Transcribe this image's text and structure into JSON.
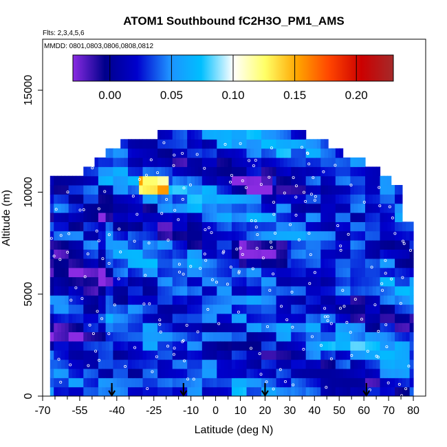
{
  "chart_data": {
    "type": "heatmap",
    "title": "ATOM1 Southbound fC2H3O_PM1_AMS",
    "subtitle_flights": "Flts: 2,3,4,5,6",
    "subtitle_dates": "MMDD: 0801,0803,0806,0808,0812",
    "xlabel": "Latitude (deg N)",
    "ylabel": "Altitude (m)",
    "xlim": [
      -70,
      85
    ],
    "ylim": [
      0,
      17500
    ],
    "x_tick_values": [
      -70,
      -55,
      -40,
      -25,
      -10,
      0,
      10,
      20,
      30,
      40,
      50,
      60,
      70,
      80
    ],
    "x_tick_labels": [
      "-70",
      "-55",
      "-40",
      "-25",
      "-10",
      "0",
      "10",
      "20",
      "30",
      "40",
      "50",
      "60",
      "70",
      "80"
    ],
    "x_minor_ticks": [
      -65,
      -60,
      -50,
      -45,
      -35,
      -30,
      -20,
      -15,
      -5,
      5,
      15,
      25,
      35,
      45,
      55,
      65,
      75
    ],
    "y_tick_values": [
      0,
      5000,
      10000,
      15000
    ],
    "y_tick_labels": [
      "0",
      "5000",
      "10000",
      "15000"
    ],
    "colorbar": {
      "range": [
        -0.03,
        0.23
      ],
      "tick_values": [
        0.0,
        0.05,
        0.1,
        0.15,
        0.2
      ],
      "tick_labels": [
        "0.00",
        "0.05",
        "0.10",
        "0.15",
        "0.20"
      ],
      "colors": [
        "#8a2be2",
        "#00008b",
        "#0000cd",
        "#1e90ff",
        "#00bfff",
        "#ffffff",
        "#ffff66",
        "#ffa500",
        "#ff4500",
        "#cc0000",
        "#a52a2a"
      ]
    },
    "arrow_latitudes": [
      -42,
      -13,
      20,
      61
    ],
    "altitude_profile": [
      [
        -67,
        0,
        10500
      ],
      [
        -65,
        0,
        10500
      ],
      [
        -60,
        0,
        10500
      ],
      [
        -55,
        0,
        10900
      ],
      [
        -50,
        0,
        11600
      ],
      [
        -45,
        0,
        12000
      ],
      [
        -40,
        0,
        12200
      ],
      [
        -35,
        0,
        12400
      ],
      [
        -30,
        0,
        12600
      ],
      [
        -25,
        0,
        12700
      ],
      [
        -20,
        0,
        12700
      ],
      [
        -15,
        0,
        12700
      ],
      [
        -10,
        0,
        12700
      ],
      [
        -5,
        0,
        12700
      ],
      [
        0,
        0,
        12700
      ],
      [
        5,
        0,
        13000
      ],
      [
        10,
        0,
        13000
      ],
      [
        15,
        0,
        13000
      ],
      [
        20,
        0,
        13000
      ],
      [
        25,
        0,
        13000
      ],
      [
        30,
        0,
        13000
      ],
      [
        35,
        0,
        12200
      ],
      [
        40,
        0,
        12200
      ],
      [
        45,
        0,
        11800
      ],
      [
        50,
        0,
        11600
      ],
      [
        55,
        0,
        11300
      ],
      [
        60,
        0,
        11000
      ],
      [
        65,
        0,
        10500
      ],
      [
        70,
        0,
        10000
      ],
      [
        75,
        0,
        8500
      ],
      [
        79,
        0,
        6000
      ]
    ],
    "grid": false,
    "legend": "colorbar at top"
  }
}
